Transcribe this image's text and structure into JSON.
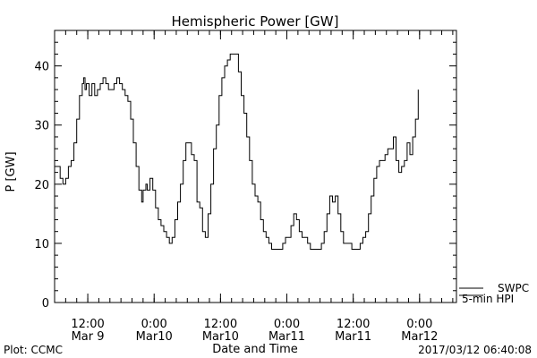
{
  "chart_data": {
    "type": "line",
    "title": "Hemispheric Power [GW]",
    "xlabel": "Date and Time",
    "ylabel": "P [GW]",
    "ylim": [
      0,
      46
    ],
    "xlim": [
      "2017-03-09T06:00",
      "2017-03-12T06:40"
    ],
    "yticks": [
      0,
      10,
      20,
      30,
      40
    ],
    "xticks": [
      {
        "t": "2017-03-09T12:00",
        "top": "12:00",
        "bottom": "Mar 9"
      },
      {
        "t": "2017-03-10T00:00",
        "top": "0:00",
        "bottom": "Mar10"
      },
      {
        "t": "2017-03-10T12:00",
        "top": "12:00",
        "bottom": "Mar10"
      },
      {
        "t": "2017-03-11T00:00",
        "top": "0:00",
        "bottom": "Mar11"
      },
      {
        "t": "2017-03-11T12:00",
        "top": "12:00",
        "bottom": "Mar11"
      },
      {
        "t": "2017-03-12T00:00",
        "top": "0:00",
        "bottom": "Mar12"
      }
    ],
    "series": [
      {
        "name": "5-min HPI",
        "color": "#000000",
        "points": [
          [
            "2017-03-09T06:00",
            23
          ],
          [
            "2017-03-09T06:30",
            23
          ],
          [
            "2017-03-09T07:00",
            21
          ],
          [
            "2017-03-09T07:30",
            20
          ],
          [
            "2017-03-09T08:00",
            21
          ],
          [
            "2017-03-09T08:30",
            23
          ],
          [
            "2017-03-09T09:00",
            24
          ],
          [
            "2017-03-09T09:30",
            27
          ],
          [
            "2017-03-09T10:00",
            31
          ],
          [
            "2017-03-09T10:30",
            35
          ],
          [
            "2017-03-09T11:00",
            37
          ],
          [
            "2017-03-09T11:15",
            38
          ],
          [
            "2017-03-09T11:30",
            36
          ],
          [
            "2017-03-09T11:45",
            37
          ],
          [
            "2017-03-09T12:15",
            35
          ],
          [
            "2017-03-09T12:45",
            37
          ],
          [
            "2017-03-09T13:15",
            35
          ],
          [
            "2017-03-09T13:45",
            36
          ],
          [
            "2017-03-09T14:15",
            37
          ],
          [
            "2017-03-09T14:45",
            38
          ],
          [
            "2017-03-09T15:15",
            37
          ],
          [
            "2017-03-09T15:45",
            36
          ],
          [
            "2017-03-09T16:15",
            36
          ],
          [
            "2017-03-09T16:45",
            37
          ],
          [
            "2017-03-09T17:15",
            38
          ],
          [
            "2017-03-09T17:45",
            37
          ],
          [
            "2017-03-09T18:15",
            36
          ],
          [
            "2017-03-09T18:45",
            35
          ],
          [
            "2017-03-09T19:15",
            34
          ],
          [
            "2017-03-09T19:45",
            31
          ],
          [
            "2017-03-09T20:15",
            27
          ],
          [
            "2017-03-09T20:45",
            23
          ],
          [
            "2017-03-09T21:15",
            19
          ],
          [
            "2017-03-09T21:45",
            17
          ],
          [
            "2017-03-09T22:00",
            19
          ],
          [
            "2017-03-09T22:30",
            20
          ],
          [
            "2017-03-09T22:45",
            19
          ],
          [
            "2017-03-09T23:15",
            21
          ],
          [
            "2017-03-09T23:45",
            19
          ],
          [
            "2017-03-10T00:15",
            16
          ],
          [
            "2017-03-10T00:45",
            14
          ],
          [
            "2017-03-10T01:15",
            13
          ],
          [
            "2017-03-10T01:45",
            12
          ],
          [
            "2017-03-10T02:15",
            11
          ],
          [
            "2017-03-10T02:45",
            10
          ],
          [
            "2017-03-10T03:15",
            11
          ],
          [
            "2017-03-10T03:45",
            14
          ],
          [
            "2017-03-10T04:15",
            17
          ],
          [
            "2017-03-10T04:45",
            20
          ],
          [
            "2017-03-10T05:15",
            24
          ],
          [
            "2017-03-10T05:45",
            27
          ],
          [
            "2017-03-10T06:15",
            27
          ],
          [
            "2017-03-10T06:45",
            25
          ],
          [
            "2017-03-10T07:15",
            24
          ],
          [
            "2017-03-10T07:45",
            17
          ],
          [
            "2017-03-10T08:15",
            16
          ],
          [
            "2017-03-10T08:45",
            12
          ],
          [
            "2017-03-10T09:15",
            11
          ],
          [
            "2017-03-10T09:45",
            15
          ],
          [
            "2017-03-10T10:15",
            20
          ],
          [
            "2017-03-10T10:45",
            26
          ],
          [
            "2017-03-10T11:15",
            30
          ],
          [
            "2017-03-10T11:45",
            35
          ],
          [
            "2017-03-10T12:15",
            38
          ],
          [
            "2017-03-10T12:45",
            40
          ],
          [
            "2017-03-10T13:15",
            41
          ],
          [
            "2017-03-10T13:45",
            42
          ],
          [
            "2017-03-10T14:15",
            42
          ],
          [
            "2017-03-10T14:45",
            42
          ],
          [
            "2017-03-10T15:15",
            39
          ],
          [
            "2017-03-10T15:45",
            35
          ],
          [
            "2017-03-10T16:15",
            32
          ],
          [
            "2017-03-10T16:45",
            28
          ],
          [
            "2017-03-10T17:15",
            24
          ],
          [
            "2017-03-10T17:45",
            20
          ],
          [
            "2017-03-10T18:15",
            18
          ],
          [
            "2017-03-10T18:45",
            17
          ],
          [
            "2017-03-10T19:15",
            14
          ],
          [
            "2017-03-10T19:45",
            12
          ],
          [
            "2017-03-10T20:15",
            11
          ],
          [
            "2017-03-10T20:45",
            10
          ],
          [
            "2017-03-10T21:15",
            9
          ],
          [
            "2017-03-10T22:45",
            9
          ],
          [
            "2017-03-10T23:15",
            10
          ],
          [
            "2017-03-10T23:45",
            11
          ],
          [
            "2017-03-11T00:15",
            11
          ],
          [
            "2017-03-11T00:45",
            13
          ],
          [
            "2017-03-11T01:15",
            15
          ],
          [
            "2017-03-11T01:45",
            14
          ],
          [
            "2017-03-11T02:15",
            12
          ],
          [
            "2017-03-11T02:45",
            11
          ],
          [
            "2017-03-11T03:15",
            11
          ],
          [
            "2017-03-11T03:45",
            10
          ],
          [
            "2017-03-11T04:15",
            9
          ],
          [
            "2017-03-11T05:45",
            9
          ],
          [
            "2017-03-11T06:15",
            10
          ],
          [
            "2017-03-11T06:45",
            12
          ],
          [
            "2017-03-11T07:15",
            15
          ],
          [
            "2017-03-11T07:45",
            18
          ],
          [
            "2017-03-11T08:15",
            17
          ],
          [
            "2017-03-11T08:45",
            18
          ],
          [
            "2017-03-11T09:15",
            15
          ],
          [
            "2017-03-11T09:45",
            12
          ],
          [
            "2017-03-11T10:15",
            10
          ],
          [
            "2017-03-11T11:15",
            10
          ],
          [
            "2017-03-11T11:45",
            9
          ],
          [
            "2017-03-11T12:45",
            9
          ],
          [
            "2017-03-11T13:15",
            10
          ],
          [
            "2017-03-11T13:45",
            11
          ],
          [
            "2017-03-11T14:15",
            12
          ],
          [
            "2017-03-11T14:45",
            15
          ],
          [
            "2017-03-11T15:15",
            18
          ],
          [
            "2017-03-11T15:45",
            21
          ],
          [
            "2017-03-11T16:15",
            23
          ],
          [
            "2017-03-11T16:45",
            24
          ],
          [
            "2017-03-11T17:15",
            24
          ],
          [
            "2017-03-11T17:45",
            25
          ],
          [
            "2017-03-11T18:15",
            26
          ],
          [
            "2017-03-11T18:45",
            26
          ],
          [
            "2017-03-11T19:15",
            28
          ],
          [
            "2017-03-11T19:45",
            24
          ],
          [
            "2017-03-11T20:15",
            22
          ],
          [
            "2017-03-11T20:45",
            23
          ],
          [
            "2017-03-11T21:15",
            24
          ],
          [
            "2017-03-11T21:45",
            27
          ],
          [
            "2017-03-11T22:15",
            25
          ],
          [
            "2017-03-11T22:45",
            28
          ],
          [
            "2017-03-11T23:15",
            31
          ],
          [
            "2017-03-11T23:45",
            36
          ]
        ]
      },
      {
        "name": "SWPC",
        "color": "#000000",
        "points": []
      }
    ],
    "legend": {
      "placement": "bottom-right",
      "entries": [
        "SWPC",
        "5-min HPI"
      ]
    },
    "grid": false
  },
  "footer": {
    "left": "Plot: CCMC",
    "right": "2017/03/12 06:40:08"
  }
}
